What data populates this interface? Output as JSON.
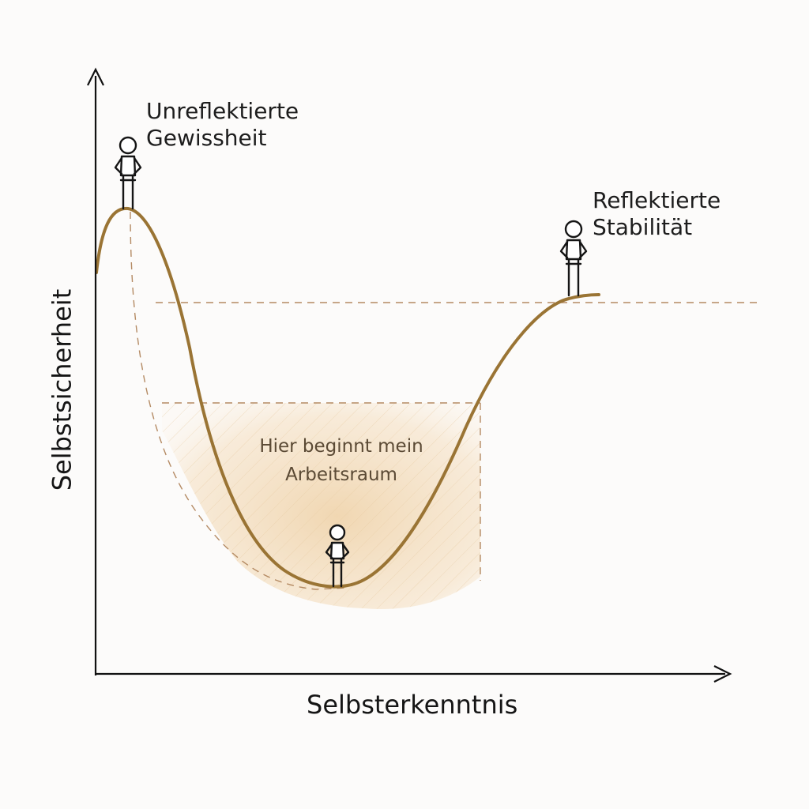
{
  "diagram": {
    "axes": {
      "x_label": "Selbsterkenntnis",
      "y_label": "Selbstsicherheit"
    },
    "annotations": {
      "peak_left": [
        "Unreflektierte",
        "Gewissheit"
      ],
      "peak_right": [
        "Reflektierte",
        "Stabilität"
      ],
      "valley": [
        "Hier beginnt mein",
        "Arbeitsraum"
      ]
    },
    "figures": [
      "stick-figure-left-peak",
      "stick-figure-valley",
      "stick-figure-right-peak"
    ],
    "colors": {
      "curve": "#9a7434",
      "dashed_guides": "#b48a63",
      "valley_zone": "#f4dfc2",
      "axes": "#111111",
      "background": "#fcfbfa"
    }
  }
}
